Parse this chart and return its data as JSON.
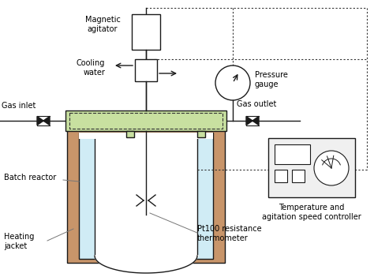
{
  "bg_color": "#ffffff",
  "heating_jacket_color": "#c8956a",
  "lid_color": "#c8e0a0",
  "inner_vessel_fill": "#d0ecf5",
  "controller_box_color": "#f0f0f0",
  "line_color": "#1a1a1a",
  "dashed_color": "#333333",
  "labels": {
    "magnetic_agitator": "Magnetic\nagitator",
    "cooling_water": "Cooling\nwater",
    "gas_inlet": "Gas inlet",
    "pressure_gauge": "Pressure\ngauge",
    "gas_outlet": "Gas outlet",
    "batch_reactor": "Batch reactor",
    "heating_jacket": "Heating\njacket",
    "pt100": "Pt100 resistance\nthermometer",
    "controller": "Temperature and\nagitation speed controller"
  }
}
